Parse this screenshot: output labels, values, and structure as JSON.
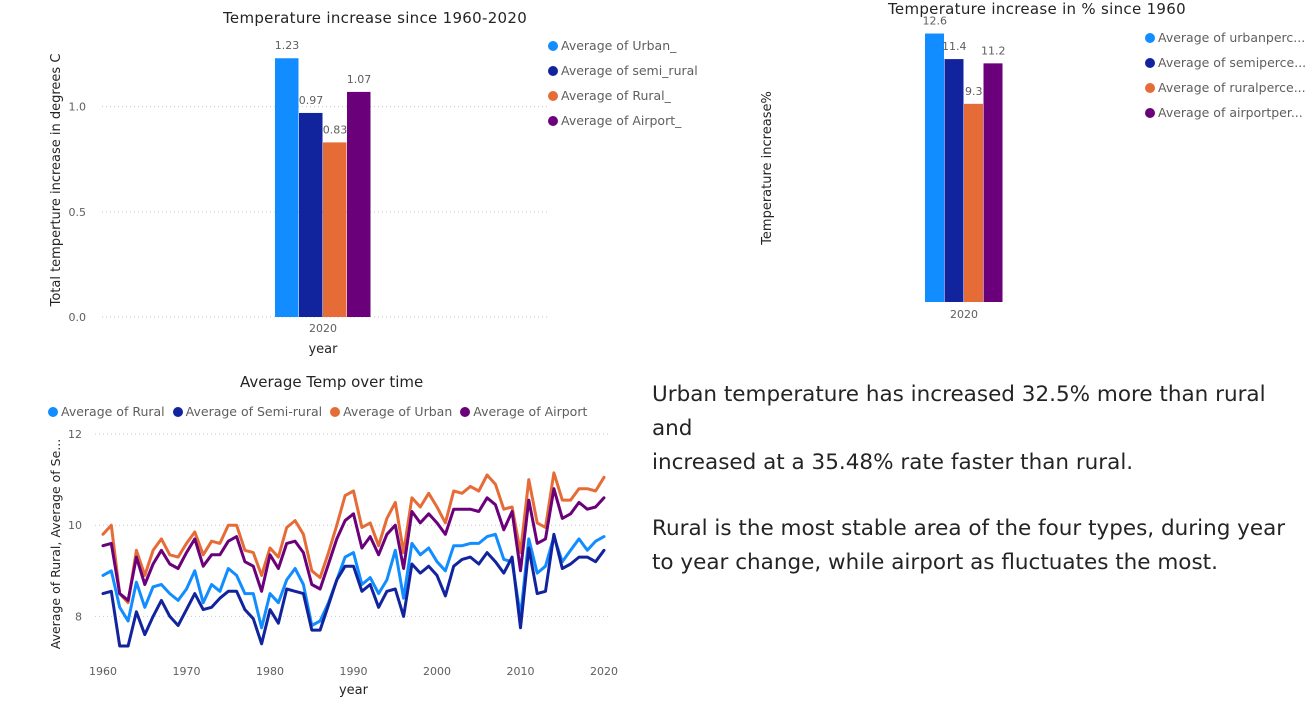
{
  "chart_data": [
    {
      "type": "bar",
      "title": "Temperature increase since 1960-2020",
      "xlabel": "year",
      "ylabel": "Total temperture increase in degrees C",
      "categories": [
        "2020"
      ],
      "ylim": [
        0,
        1.35
      ],
      "yticks": [
        "0.0",
        "0.5",
        "1.0"
      ],
      "grid": true,
      "legend_position": "right",
      "series": [
        {
          "name": "Average of Urban_",
          "values": [
            1.23
          ],
          "label": "1.23",
          "color": "#118DFF"
        },
        {
          "name": "Average of semi_rural",
          "values": [
            0.97
          ],
          "label": "0.97",
          "color": "#12239E"
        },
        {
          "name": "Average of Rural_",
          "values": [
            0.83
          ],
          "label": "0.83",
          "color": "#E66C37"
        },
        {
          "name": "Average of Airport_",
          "values": [
            1.07
          ],
          "label": "1.07",
          "color": "#6B007B"
        }
      ]
    },
    {
      "type": "bar",
      "title": "Temperature increase in % since 1960",
      "xlabel": "",
      "ylabel": "Temperature increase%",
      "categories": [
        "2020"
      ],
      "ylim": [
        0,
        13
      ],
      "grid": false,
      "legend_position": "right",
      "series": [
        {
          "name": "Average of urbanperc...",
          "values": [
            12.6
          ],
          "label": "12.6",
          "color": "#118DFF"
        },
        {
          "name": "Average of semiperce...",
          "values": [
            11.4
          ],
          "label": "11.4",
          "color": "#12239E"
        },
        {
          "name": "Average of ruralperce...",
          "values": [
            9.3
          ],
          "label": "9.3",
          "color": "#E66C37"
        },
        {
          "name": "Average of airportper...",
          "values": [
            11.2
          ],
          "label": "11.2",
          "color": "#6B007B"
        }
      ]
    },
    {
      "type": "line",
      "title": "Average Temp over time",
      "xlabel": "year",
      "ylabel": "Average of Rural, Average of Se...",
      "xlim": [
        1960,
        2020
      ],
      "ylim": [
        7,
        12
      ],
      "xticks": [
        "1960",
        "1970",
        "1980",
        "1990",
        "2000",
        "2010",
        "2020"
      ],
      "yticks": [
        "8",
        "10",
        "12"
      ],
      "grid": true,
      "legend_position": "top",
      "x": [
        1960,
        1961,
        1962,
        1963,
        1964,
        1965,
        1966,
        1967,
        1968,
        1969,
        1970,
        1971,
        1972,
        1973,
        1974,
        1975,
        1976,
        1977,
        1978,
        1979,
        1980,
        1981,
        1982,
        1983,
        1984,
        1985,
        1986,
        1987,
        1988,
        1989,
        1990,
        1991,
        1992,
        1993,
        1994,
        1995,
        1996,
        1997,
        1998,
        1999,
        2000,
        2001,
        2002,
        2003,
        2004,
        2005,
        2006,
        2007,
        2008,
        2009,
        2010,
        2011,
        2012,
        2013,
        2014,
        2015,
        2016,
        2017,
        2018,
        2019,
        2020
      ],
      "series": [
        {
          "name": "Average of Rural",
          "color": "#118DFF",
          "values": [
            8.9,
            9.0,
            8.2,
            7.9,
            8.75,
            8.2,
            8.65,
            8.7,
            8.5,
            8.35,
            8.6,
            9.0,
            8.3,
            8.7,
            8.55,
            9.05,
            8.9,
            8.5,
            8.5,
            7.75,
            8.5,
            8.3,
            8.8,
            9.05,
            8.7,
            7.8,
            7.9,
            8.3,
            8.8,
            9.3,
            9.4,
            8.7,
            8.85,
            8.5,
            8.8,
            9.45,
            8.4,
            9.6,
            9.35,
            9.5,
            9.2,
            9.0,
            9.55,
            9.55,
            9.6,
            9.6,
            9.75,
            9.8,
            9.25,
            9.2,
            8.0,
            9.7,
            8.95,
            9.1,
            9.75,
            9.2,
            9.45,
            9.7,
            9.45,
            9.65,
            9.75
          ]
        },
        {
          "name": "Average of Semi-rural",
          "color": "#12239E",
          "values": [
            8.5,
            8.55,
            7.35,
            7.35,
            8.1,
            7.6,
            8.0,
            8.35,
            8.0,
            7.8,
            8.15,
            8.5,
            8.15,
            8.2,
            8.4,
            8.55,
            8.55,
            8.15,
            7.95,
            7.4,
            8.15,
            7.85,
            8.6,
            8.55,
            8.5,
            7.7,
            7.7,
            8.25,
            8.8,
            9.1,
            9.1,
            8.55,
            8.7,
            8.2,
            8.55,
            8.6,
            8.0,
            9.15,
            8.95,
            9.1,
            8.9,
            8.45,
            9.1,
            9.25,
            9.3,
            9.15,
            9.4,
            9.2,
            8.95,
            9.3,
            7.75,
            9.5,
            8.5,
            8.55,
            9.8,
            9.05,
            9.15,
            9.3,
            9.3,
            9.2,
            9.45
          ]
        },
        {
          "name": "Average of Urban",
          "color": "#E66C37",
          "values": [
            9.8,
            10.0,
            8.5,
            8.3,
            9.45,
            8.9,
            9.45,
            9.7,
            9.35,
            9.3,
            9.6,
            9.85,
            9.35,
            9.65,
            9.6,
            10.0,
            10.0,
            9.45,
            9.4,
            8.9,
            9.5,
            9.3,
            9.95,
            10.1,
            9.8,
            9.0,
            8.85,
            9.4,
            10.0,
            10.65,
            10.75,
            9.95,
            10.05,
            9.55,
            10.15,
            10.5,
            9.4,
            10.6,
            10.4,
            10.7,
            10.4,
            10.05,
            10.75,
            10.7,
            10.85,
            10.75,
            11.1,
            10.9,
            10.35,
            10.4,
            9.4,
            11.0,
            10.05,
            9.95,
            11.15,
            10.55,
            10.55,
            10.8,
            10.8,
            10.75,
            11.05
          ]
        },
        {
          "name": "Average of Airport",
          "color": "#6B007B",
          "values": [
            9.55,
            9.6,
            8.5,
            8.35,
            9.3,
            8.7,
            9.15,
            9.45,
            9.15,
            9.05,
            9.4,
            9.7,
            9.1,
            9.35,
            9.35,
            9.65,
            9.75,
            9.2,
            9.1,
            8.55,
            9.35,
            9.05,
            9.6,
            9.65,
            9.4,
            8.7,
            8.6,
            9.15,
            9.7,
            10.1,
            10.25,
            9.5,
            9.75,
            9.35,
            9.8,
            10.0,
            9.05,
            10.3,
            10.05,
            10.25,
            10.05,
            9.8,
            10.35,
            10.35,
            10.35,
            10.3,
            10.6,
            10.45,
            9.9,
            10.3,
            9.0,
            10.55,
            9.6,
            9.7,
            10.8,
            10.15,
            10.25,
            10.5,
            10.35,
            10.4,
            10.6
          ]
        }
      ]
    }
  ],
  "insights": {
    "para1_line1": "Urban temperature has increased 32.5% more than rural and",
    "para1_line2": "increased at a 35.48% rate faster than rural.",
    "para2_line1": "Rural is the most stable area of the four types, during year",
    "para2_line2": "to year change, while airport as fluctuates the most."
  }
}
